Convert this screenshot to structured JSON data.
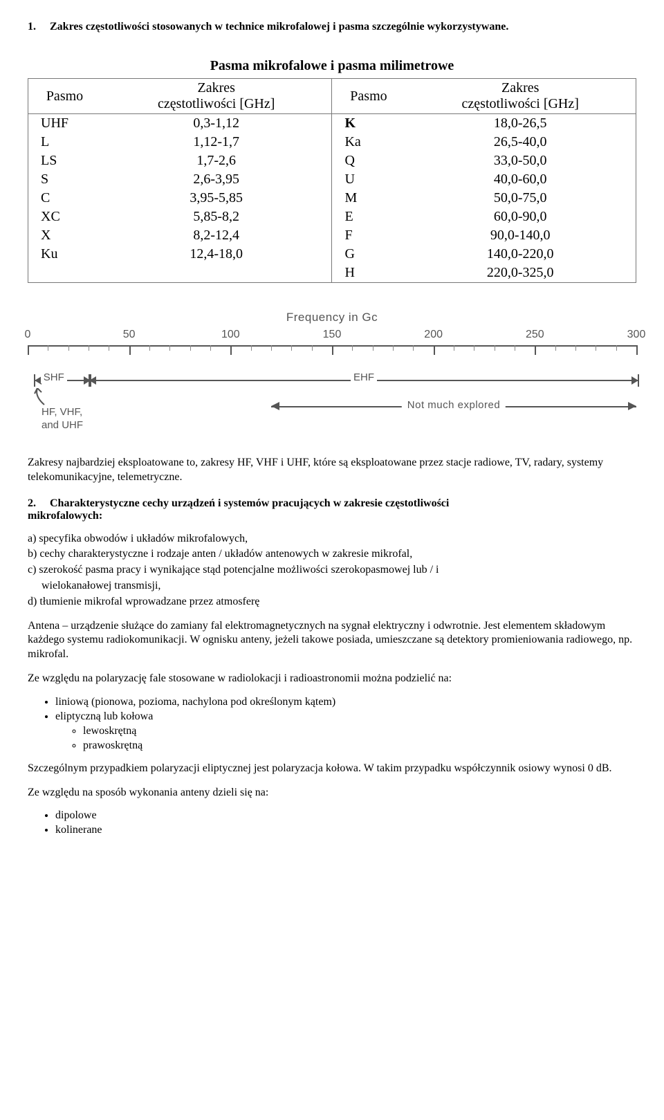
{
  "section1": {
    "number": "1.",
    "title": "Zakres częstotliwości stosowanych w technice mikrofalowej i pasma szczególnie wykorzystywane."
  },
  "table": {
    "title": "Pasma mikrofalowe i pasma milimetrowe",
    "header": {
      "band": "Pasmo",
      "range_l1": "Zakres",
      "range_l2": "częstotliwości [GHz]"
    },
    "left": [
      {
        "band": "UHF",
        "range": "0,3-1,12"
      },
      {
        "band": "L",
        "range": "1,12-1,7"
      },
      {
        "band": "LS",
        "range": "1,7-2,6"
      },
      {
        "band": "S",
        "range": "2,6-3,95"
      },
      {
        "band": "C",
        "range": "3,95-5,85"
      },
      {
        "band": "XC",
        "range": "5,85-8,2"
      },
      {
        "band": "X",
        "range": "8,2-12,4"
      },
      {
        "band": "Ku",
        "range": "12,4-18,0"
      }
    ],
    "right": [
      {
        "band": "K",
        "range": "18,0-26,5"
      },
      {
        "band": "Ka",
        "range": "26,5-40,0"
      },
      {
        "band": "Q",
        "range": "33,0-50,0"
      },
      {
        "band": "U",
        "range": "40,0-60,0"
      },
      {
        "band": "M",
        "range": "50,0-75,0"
      },
      {
        "band": "E",
        "range": "60,0-90,0"
      },
      {
        "band": "F",
        "range": "90,0-140,0"
      },
      {
        "band": "G",
        "range": "140,0-220,0"
      },
      {
        "band": "H",
        "range": "220,0-325,0"
      }
    ]
  },
  "chart": {
    "title": "Frequency in Gc",
    "xmin": 0,
    "xmax": 300,
    "tick_step": 50,
    "minor_step": 10,
    "ticks": [
      "0",
      "50",
      "100",
      "150",
      "200",
      "250",
      "300"
    ],
    "shf": {
      "label": "SHF",
      "from": 3,
      "to": 30
    },
    "ehf": {
      "label": "EHF",
      "from": 30,
      "to": 300
    },
    "hf_note_l1": "HF, VHF,",
    "hf_note_l2": "and UHF",
    "explored": {
      "label": "Not much explored",
      "from": 120,
      "to": 300
    },
    "axis_color": "#555555",
    "text_color": "#555555"
  },
  "para1": "Zakresy najbardziej eksploatowane to, zakresy HF, VHF i UHF, które są eksploatowane przez stacje radiowe, TV, radary, systemy telekomunikacyjne, telemetryczne.",
  "section2": {
    "number": "2.",
    "title_l1": "Charakterystyczne cechy urządzeń i systemów pracujących w zakresie częstotliwości",
    "title_l2": "mikrofalowych:"
  },
  "letters": {
    "a": "a) specyfika obwodów i układów mikrofalowych,",
    "b": "b) cechy charakterystyczne i rodzaje anten / układów antenowych w zakresie mikrofal,",
    "c1": "c) szerokość pasma pracy i wynikające stąd potencjalne możliwości szerokopasmowej lub / i",
    "c2": "wielokanałowej transmisji,",
    "d": "d) tłumienie mikrofal wprowadzane przez atmosferę"
  },
  "para2": "Antena – urządzenie służące do zamiany fal elektromagnetycznych na sygnał elektryczny i odwrotnie. Jest elementem składowym każdego systemu radiokomunikacji. W ognisku anteny, jeżeli takowe posiada, umieszczane są detektory promieniowania radiowego, np. mikrofal.",
  "para3": "Ze względu na polaryzację fale stosowane w radiolokacji i radioastronomii można podzielić na:",
  "list1": {
    "i1": "liniową (pionowa, pozioma, nachylona pod określonym kątem)",
    "i2": "eliptyczną lub kołowa",
    "s1": "lewoskrętną",
    "s2": "prawoskrętną"
  },
  "para4": "Szczególnym przypadkiem polaryzacji eliptycznej jest polaryzacja kołowa. W takim przypadku współczynnik osiowy wynosi 0 dB.",
  "para5": "Ze względu na sposób wykonania anteny dzieli się na:",
  "list2": {
    "i1": "dipolowe",
    "i2": "kolinerane"
  }
}
